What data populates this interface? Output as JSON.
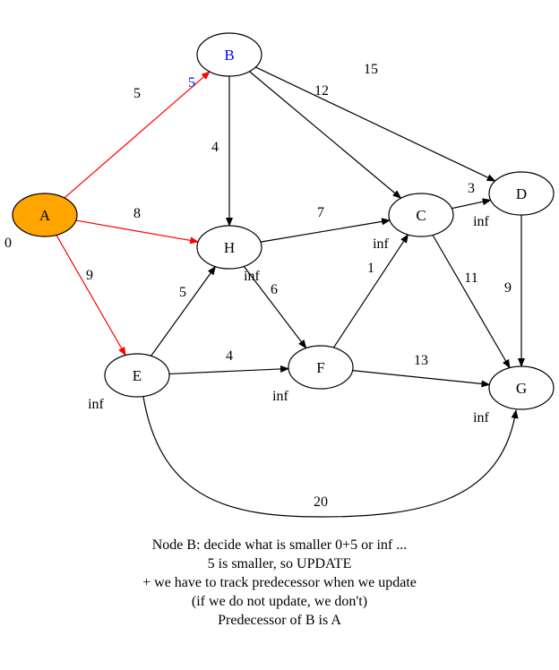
{
  "colors": {
    "edge_default": "#000000",
    "edge_relaxed": "#ff0000",
    "source_fill": "#ffa500",
    "current_node_text": "#0000ff",
    "node_fill": "#ffffff"
  },
  "graph": {
    "source": "A",
    "current": "B",
    "nodes": [
      {
        "id": "A",
        "label": "A",
        "distance": "0",
        "role": "source"
      },
      {
        "id": "B",
        "label": "B",
        "distance": "5",
        "role": "current"
      },
      {
        "id": "C",
        "label": "C",
        "distance": "inf",
        "role": "normal"
      },
      {
        "id": "D",
        "label": "D",
        "distance": "inf",
        "role": "normal"
      },
      {
        "id": "E",
        "label": "E",
        "distance": "inf",
        "role": "normal"
      },
      {
        "id": "F",
        "label": "F",
        "distance": "inf",
        "role": "normal"
      },
      {
        "id": "G",
        "label": "G",
        "distance": "inf",
        "role": "normal"
      },
      {
        "id": "H",
        "label": "H",
        "distance": "inf",
        "role": "normal"
      }
    ],
    "edges": [
      {
        "from": "A",
        "to": "B",
        "weight": "5",
        "highlight": true
      },
      {
        "from": "A",
        "to": "H",
        "weight": "8",
        "highlight": true
      },
      {
        "from": "A",
        "to": "E",
        "weight": "9",
        "highlight": true
      },
      {
        "from": "B",
        "to": "H",
        "weight": "4",
        "highlight": false
      },
      {
        "from": "B",
        "to": "C",
        "weight": "12",
        "highlight": false
      },
      {
        "from": "B",
        "to": "D",
        "weight": "15",
        "highlight": false
      },
      {
        "from": "H",
        "to": "C",
        "weight": "7",
        "highlight": false
      },
      {
        "from": "H",
        "to": "F",
        "weight": "6",
        "highlight": false
      },
      {
        "from": "C",
        "to": "D",
        "weight": "3",
        "highlight": false
      },
      {
        "from": "C",
        "to": "G",
        "weight": "11",
        "highlight": false
      },
      {
        "from": "D",
        "to": "G",
        "weight": "9",
        "highlight": false
      },
      {
        "from": "E",
        "to": "H",
        "weight": "5",
        "highlight": false
      },
      {
        "from": "E",
        "to": "F",
        "weight": "4",
        "highlight": false
      },
      {
        "from": "E",
        "to": "G",
        "weight": "20",
        "highlight": false
      },
      {
        "from": "F",
        "to": "C",
        "weight": "1",
        "highlight": false
      },
      {
        "from": "F",
        "to": "G",
        "weight": "13",
        "highlight": false
      }
    ]
  },
  "caption": {
    "lines": [
      "Node B: decide what is smaller 0+5 or inf ...",
      "5 is smaller, so UPDATE",
      "+ we have to track predecessor when we update",
      "(if we do not update, we don't)",
      "Predecessor of B is A"
    ]
  }
}
